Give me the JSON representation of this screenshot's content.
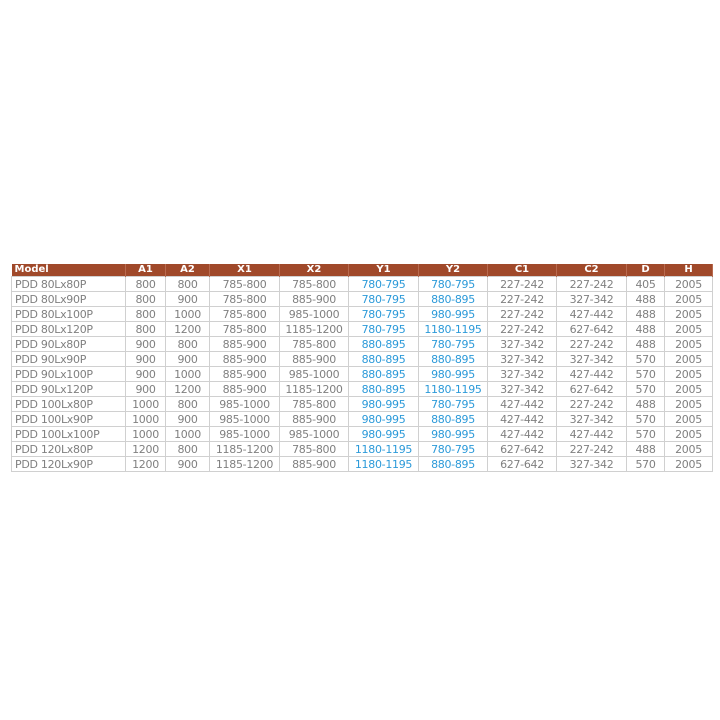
{
  "colors": {
    "header_bg": "#a0492a",
    "text": "#808080",
    "highlight": "#2c9ad9"
  },
  "headers": [
    "Model",
    "A1",
    "A2",
    "X1",
    "X2",
    "Y1",
    "Y2",
    "C1",
    "C2",
    "D",
    "H"
  ],
  "rows": [
    [
      "PDD 80Lx80P",
      "800",
      "800",
      "785-800",
      "785-800",
      "780-795",
      "780-795",
      "227-242",
      "227-242",
      "405",
      "2005"
    ],
    [
      "PDD 80Lx90P",
      "800",
      "900",
      "785-800",
      "885-900",
      "780-795",
      "880-895",
      "227-242",
      "327-342",
      "488",
      "2005"
    ],
    [
      "PDD 80Lx100P",
      "800",
      "1000",
      "785-800",
      "985-1000",
      "780-795",
      "980-995",
      "227-242",
      "427-442",
      "488",
      "2005"
    ],
    [
      "PDD 80Lx120P",
      "800",
      "1200",
      "785-800",
      "1185-1200",
      "780-795",
      "1180-1195",
      "227-242",
      "627-642",
      "488",
      "2005"
    ],
    [
      "PDD 90Lx80P",
      "900",
      "800",
      "885-900",
      "785-800",
      "880-895",
      "780-795",
      "327-342",
      "227-242",
      "488",
      "2005"
    ],
    [
      "PDD 90Lx90P",
      "900",
      "900",
      "885-900",
      "885-900",
      "880-895",
      "880-895",
      "327-342",
      "327-342",
      "570",
      "2005"
    ],
    [
      "PDD 90Lx100P",
      "900",
      "1000",
      "885-900",
      "985-1000",
      "880-895",
      "980-995",
      "327-342",
      "427-442",
      "570",
      "2005"
    ],
    [
      "PDD 90Lx120P",
      "900",
      "1200",
      "885-900",
      "1185-1200",
      "880-895",
      "1180-1195",
      "327-342",
      "627-642",
      "570",
      "2005"
    ],
    [
      "PDD 100Lx80P",
      "1000",
      "800",
      "985-1000",
      "785-800",
      "980-995",
      "780-795",
      "427-442",
      "227-242",
      "488",
      "2005"
    ],
    [
      "PDD 100Lx90P",
      "1000",
      "900",
      "985-1000",
      "885-900",
      "980-995",
      "880-895",
      "427-442",
      "327-342",
      "570",
      "2005"
    ],
    [
      "PDD 100Lx100P",
      "1000",
      "1000",
      "985-1000",
      "985-1000",
      "980-995",
      "980-995",
      "427-442",
      "427-442",
      "570",
      "2005"
    ],
    [
      "PDD 120Lx80P",
      "1200",
      "800",
      "1185-1200",
      "785-800",
      "1180-1195",
      "780-795",
      "627-642",
      "227-242",
      "488",
      "2005"
    ],
    [
      "PDD 120Lx90P",
      "1200",
      "900",
      "1185-1200",
      "885-900",
      "1180-1195",
      "880-895",
      "627-642",
      "327-342",
      "570",
      "2005"
    ]
  ]
}
